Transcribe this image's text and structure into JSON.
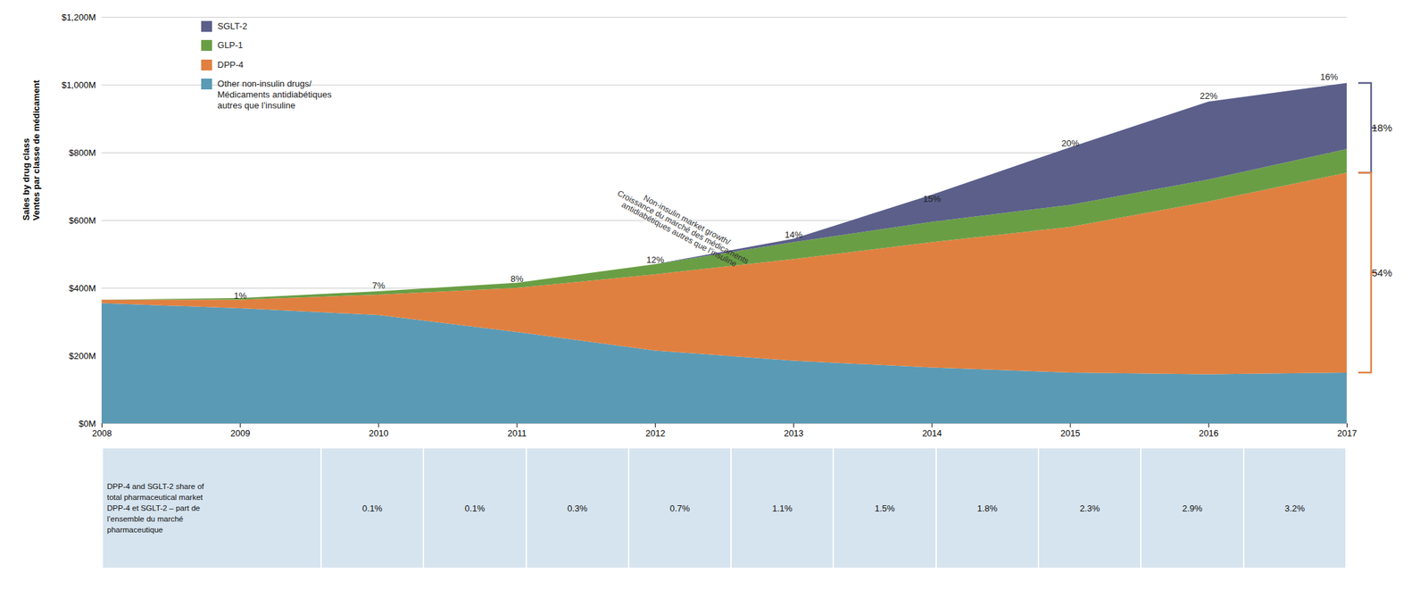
{
  "chart_data": {
    "type": "area",
    "stacked": true,
    "x": [
      2008,
      2009,
      2010,
      2011,
      2012,
      2013,
      2014,
      2015,
      2016,
      2017
    ],
    "xlim": [
      2008,
      2017
    ],
    "xticks": [
      2008,
      2009,
      2010,
      2011,
      2012,
      2013,
      2014,
      2015,
      2016,
      2017
    ],
    "ylim": [
      0,
      1200
    ],
    "yticks": [
      {
        "value": 0,
        "label": "$0M"
      },
      {
        "value": 200,
        "label": "$200M"
      },
      {
        "value": 400,
        "label": "$400M"
      },
      {
        "value": 600,
        "label": "$600M"
      },
      {
        "value": 800,
        "label": "$800M"
      },
      {
        "value": 1000,
        "label": "$1,000M"
      },
      {
        "value": 1200,
        "label": "$1,200M"
      }
    ],
    "ylabel": "Sales by drug class\nVentes par classe de médicament",
    "grid": true,
    "legend": "upper left",
    "series": [
      {
        "name": "Other non-insulin drugs/\nMédicaments antidiabétiques\nautres que l’insuline",
        "color": "#5b9ab5",
        "values": [
          355,
          340,
          320,
          270,
          215,
          185,
          165,
          150,
          145,
          150
        ]
      },
      {
        "name": "DPP-4",
        "color": "#e08040",
        "values": [
          10,
          25,
          60,
          130,
          225,
          300,
          370,
          430,
          510,
          590
        ]
      },
      {
        "name": "GLP-1",
        "color": "#6a9e45",
        "values": [
          0,
          5,
          10,
          15,
          30,
          50,
          60,
          65,
          65,
          70
        ]
      },
      {
        "name": "SGLT-2",
        "color": "#5b5f8a",
        "values": [
          0,
          0,
          0,
          0,
          0,
          10,
          80,
          170,
          230,
          195
        ]
      }
    ],
    "annotations": [
      {
        "x": 2009,
        "y": 370,
        "text": "1%"
      },
      {
        "x": 2010,
        "y": 400,
        "text": "7%"
      },
      {
        "x": 2011,
        "y": 420,
        "text": "8%"
      },
      {
        "x": 2012,
        "y": 475,
        "text": "12%"
      },
      {
        "x": 2013,
        "y": 550,
        "text": "14%"
      },
      {
        "x": 2014,
        "y": 655,
        "text": "15%"
      },
      {
        "x": 2015,
        "y": 820,
        "text": "20%"
      },
      {
        "x": 2016,
        "y": 960,
        "text": "22%"
      },
      {
        "x": 2016.87,
        "y": 1015,
        "text": "16%"
      }
    ],
    "annotation": {
      "x": 2012.2,
      "y": 580,
      "text": "Non-insulin market growth/\nCroissance du marché des médicaments\nantidiabétiques autres que l’insuline"
    },
    "brackets": [
      {
        "series": [
          "GLP-1",
          "SGLT-2"
        ],
        "color": "#5b5f8a",
        "text": "18%"
      },
      {
        "series": [
          "DPP-4"
        ],
        "color": "#e08040",
        "text": "54%"
      }
    ],
    "table": {
      "label": "DPP-4 and SGLT-2 share of\ntotal pharmaceutical market\nDPP-4 et SGLT-2 – part de\nl’ensemble du marché\npharmaceutique",
      "color": "#d6e4ef",
      "values": [
        0.1,
        0.1,
        0.3,
        0.7,
        1.1,
        1.5,
        1.8,
        2.3,
        2.9,
        3.2
      ],
      "value_labels": [
        "0.1%",
        "0.1%",
        "0.3%",
        "0.7%",
        "1.1%",
        "1.5%",
        "1.8%",
        "2.3%",
        "2.9%",
        "3.2%"
      ]
    }
  }
}
